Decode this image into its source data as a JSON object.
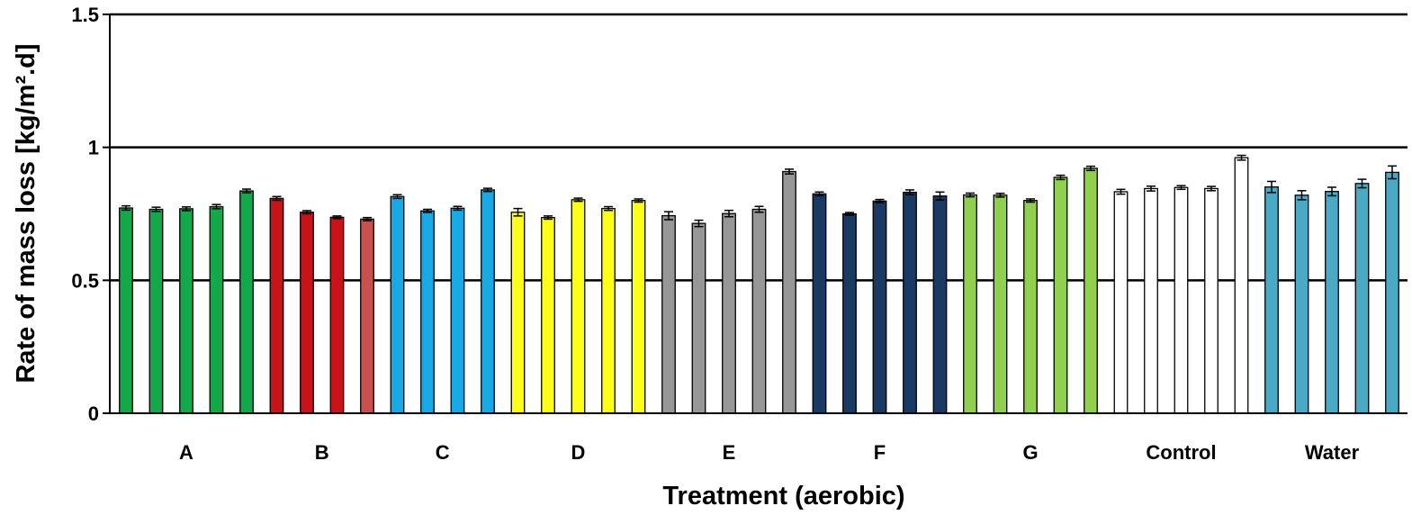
{
  "chart_data": {
    "type": "bar",
    "xlabel": "Treatment (aerobic)",
    "ylabel": "Rate of mass loss [kg/m².d]",
    "ylim": [
      0,
      1.5
    ],
    "yticks": [
      {
        "value": 0,
        "label": "0"
      },
      {
        "value": 0.5,
        "label": "0.5"
      },
      {
        "value": 1,
        "label": "1"
      },
      {
        "value": 1.5,
        "label": "1.5"
      }
    ],
    "grid": "horizontal lines at 0.5, 1 and 1.5",
    "groups": [
      {
        "label": "A",
        "colors": [
          "#13a84a",
          "#13a84a",
          "#13a84a",
          "#13a84a",
          "#13a84a"
        ],
        "values": [
          0.772,
          0.767,
          0.769,
          0.777,
          0.836
        ],
        "errors": [
          0.008,
          0.008,
          0.007,
          0.008,
          0.007
        ]
      },
      {
        "label": "B",
        "colors": [
          "#c81418",
          "#c81418",
          "#c81418",
          "#c9504c"
        ],
        "values": [
          0.808,
          0.756,
          0.737,
          0.73
        ],
        "errors": [
          0.007,
          0.006,
          0.005,
          0.006
        ]
      },
      {
        "label": "C",
        "colors": [
          "#17a9e6",
          "#17a9e6",
          "#17a9e6",
          "#17a9e6"
        ],
        "values": [
          0.815,
          0.761,
          0.771,
          0.84
        ],
        "errors": [
          0.007,
          0.006,
          0.007,
          0.006
        ]
      },
      {
        "label": "D",
        "colors": [
          "#ffff1a",
          "#ffff1a",
          "#ffff1a",
          "#ffff1a",
          "#ffff1a"
        ],
        "values": [
          0.756,
          0.736,
          0.803,
          0.77,
          0.8
        ],
        "errors": [
          0.014,
          0.006,
          0.006,
          0.007,
          0.006
        ]
      },
      {
        "label": "E",
        "colors": [
          "#979797",
          "#979797",
          "#979797",
          "#979797",
          "#979797"
        ],
        "values": [
          0.743,
          0.714,
          0.751,
          0.767,
          0.909
        ],
        "errors": [
          0.015,
          0.012,
          0.012,
          0.011,
          0.009
        ]
      },
      {
        "label": "F",
        "colors": [
          "#1a3a63",
          "#1a3a63",
          "#1a3a63",
          "#1a3a63",
          "#1a3a63"
        ],
        "values": [
          0.825,
          0.75,
          0.798,
          0.831,
          0.817
        ],
        "errors": [
          0.007,
          0.005,
          0.006,
          0.009,
          0.015
        ]
      },
      {
        "label": "G",
        "colors": [
          "#91cf4f",
          "#91cf4f",
          "#91cf4f",
          "#91cf4f",
          "#91cf4f"
        ],
        "values": [
          0.821,
          0.82,
          0.8,
          0.887,
          0.921
        ],
        "errors": [
          0.007,
          0.007,
          0.006,
          0.008,
          0.008
        ]
      },
      {
        "label": "Control",
        "colors": [
          "#ffffff",
          "#ffffff",
          "#ffffff",
          "#ffffff",
          "#ffffff"
        ],
        "values": [
          0.833,
          0.845,
          0.849,
          0.845,
          0.961
        ],
        "errors": [
          0.009,
          0.009,
          0.007,
          0.008,
          0.009
        ]
      },
      {
        "label": "Water",
        "colors": [
          "#4aaac6",
          "#4aaac6",
          "#4aaac6",
          "#4aaac6",
          "#4aaac6"
        ],
        "values": [
          0.851,
          0.82,
          0.834,
          0.864,
          0.906
        ],
        "errors": [
          0.021,
          0.017,
          0.016,
          0.016,
          0.024
        ]
      }
    ]
  }
}
